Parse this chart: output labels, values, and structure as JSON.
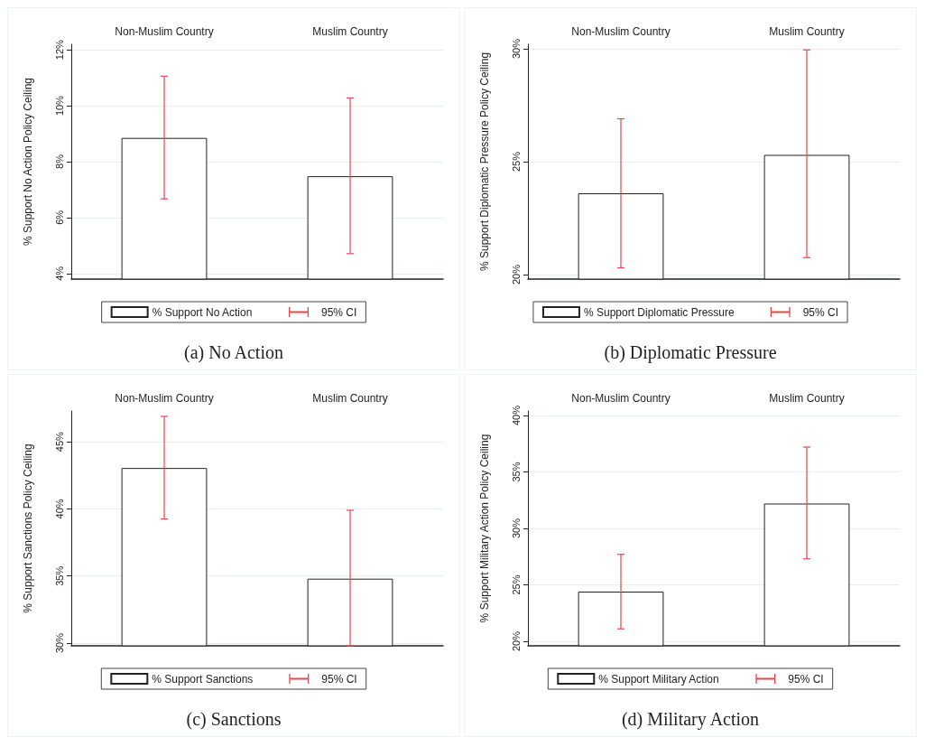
{
  "chart_data": [
    {
      "type": "bar",
      "title": "(a) No Action",
      "ylabel": "% Support No Action Policy Ceiling",
      "categories": [
        "Non-Muslim Country",
        "Muslim Country"
      ],
      "series": [
        {
          "name": "% Support No Action",
          "color": "#ffffff",
          "values": [
            8.85,
            7.48
          ],
          "errors": [
            [
              6.67,
              11.06
            ],
            [
              4.71,
              10.28
            ]
          ]
        }
      ],
      "annotations": [
        "95% CI"
      ],
      "ylim": [
        3.8,
        12.2
      ],
      "yticks": [
        {
          "value": 4,
          "label": "4%"
        },
        {
          "value": 6,
          "label": "6%"
        },
        {
          "value": 8,
          "label": "8%"
        },
        {
          "value": 10,
          "label": "10%"
        },
        {
          "value": 12,
          "label": "12%"
        }
      ],
      "grid": "y",
      "legend": "bottom"
    },
    {
      "type": "bar",
      "title": "(b) Diplomatic Pressure",
      "ylabel": "% Support Diplomatic Pressure Policy Ceiling",
      "categories": [
        "Non-Muslim Country",
        "Muslim Country"
      ],
      "series": [
        {
          "name": "% Support Diplomatic Pressure",
          "color": "#ffffff",
          "values": [
            23.6,
            25.3
          ],
          "errors": [
            [
              20.3,
              26.9
            ],
            [
              20.75,
              29.95
            ]
          ]
        }
      ],
      "annotations": [
        "95% CI"
      ],
      "ylim": [
        19.8,
        30.2
      ],
      "yticks": [
        {
          "value": 20,
          "label": "20%"
        },
        {
          "value": 25,
          "label": "25%"
        },
        {
          "value": 30,
          "label": "30%"
        }
      ],
      "grid": "y",
      "legend": "bottom"
    },
    {
      "type": "bar",
      "title": "(c) Sanctions",
      "ylabel": "% Support Sanctions Policy Ceiling",
      "categories": [
        "Non-Muslim Country",
        "Muslim Country"
      ],
      "series": [
        {
          "name": "% Support Sanctions",
          "color": "#ffffff",
          "values": [
            43.05,
            34.8
          ],
          "errors": [
            [
              39.25,
              46.9
            ],
            [
              29.8,
              39.9
            ]
          ]
        }
      ],
      "annotations": [
        "95% CI"
      ],
      "ylim": [
        29.8,
        47.3
      ],
      "yticks": [
        {
          "value": 30,
          "label": "30%"
        },
        {
          "value": 35,
          "label": "35%"
        },
        {
          "value": 40,
          "label": "40%"
        },
        {
          "value": 45,
          "label": "45%"
        }
      ],
      "grid": "y",
      "legend": "bottom"
    },
    {
      "type": "bar",
      "title": "(d) Military Action",
      "ylabel": "% Support Military Action Policy Ceiling",
      "categories": [
        "Non-Muslim Country",
        "Muslim Country"
      ],
      "series": [
        {
          "name": "% Support Military Action",
          "color": "#ffffff",
          "values": [
            24.4,
            32.2
          ],
          "errors": [
            [
              21.1,
              27.7
            ],
            [
              27.3,
              37.2
            ]
          ]
        }
      ],
      "annotations": [
        "95% CI"
      ],
      "ylim": [
        19.6,
        40.4
      ],
      "yticks": [
        {
          "value": 20,
          "label": "20%"
        },
        {
          "value": 25,
          "label": "25%"
        },
        {
          "value": 30,
          "label": "30%"
        },
        {
          "value": 35,
          "label": "35%"
        },
        {
          "value": 40,
          "label": "40%"
        }
      ],
      "grid": "y",
      "legend": "bottom"
    }
  ]
}
